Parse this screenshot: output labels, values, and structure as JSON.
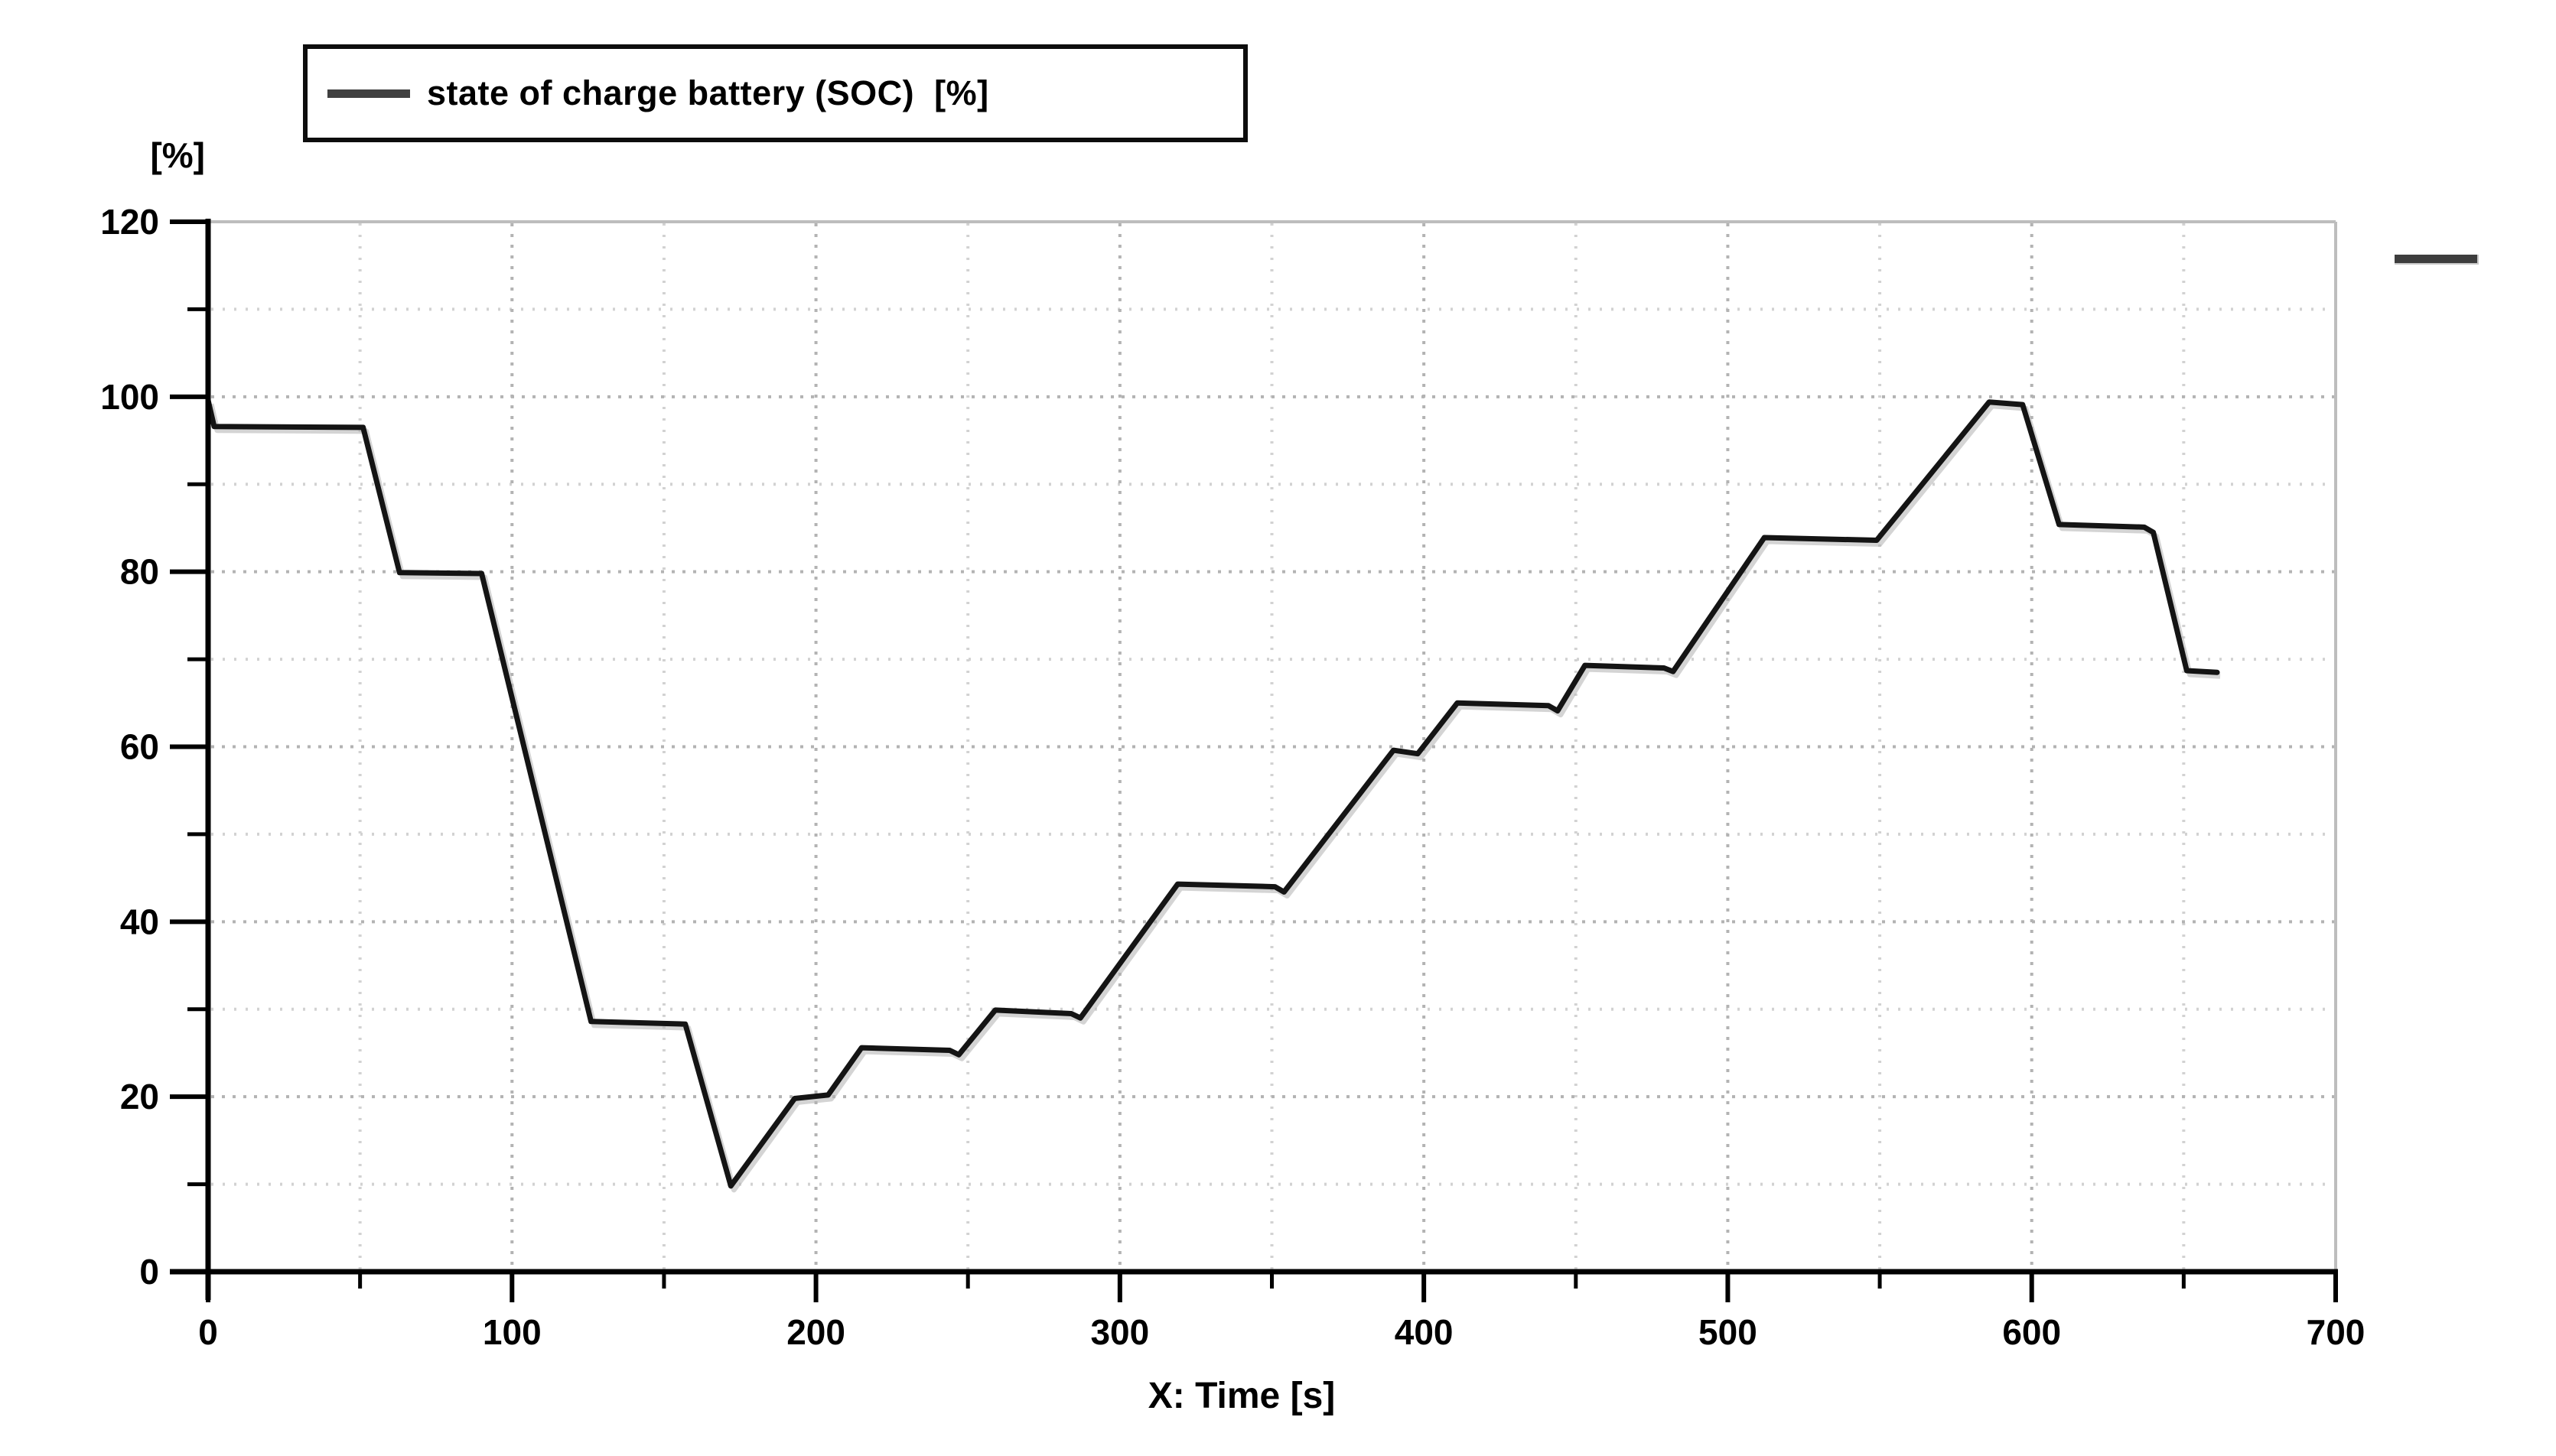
{
  "legend": {
    "label": "state of charge battery (SOC)  [%]"
  },
  "axes": {
    "y_unit_label": "[%]",
    "x_axis_label": "X: Time [s]"
  },
  "colors": {
    "series_line": "#141414",
    "series_shadow": "#b0b0b0",
    "legend_sample": "#404040",
    "axis": "#000000",
    "grid_major": "#b3b3b3",
    "grid_minor": "#d2d2d2",
    "frame_border": "#bdbdbd",
    "corner_dash": "#3d3d3d",
    "background": "#ffffff"
  },
  "chart_data": {
    "type": "line",
    "title": "",
    "xlabel": "X: Time [s]",
    "ylabel": "[%]",
    "xlim": [
      0,
      700
    ],
    "ylim": [
      0,
      120
    ],
    "x_major_ticks": [
      0,
      100,
      200,
      300,
      400,
      500,
      600,
      700
    ],
    "y_major_ticks": [
      0,
      20,
      40,
      60,
      80,
      100,
      120
    ],
    "x_minor_step": 50,
    "y_minor_step": 10,
    "grid": "dotted",
    "legend_position": "top-left",
    "series": [
      {
        "name": "state of charge battery (SOC)  [%]",
        "color": "#141414",
        "points": [
          [
            0,
            99.6
          ],
          [
            2,
            96.6
          ],
          [
            51,
            96.5
          ],
          [
            63,
            79.9
          ],
          [
            90,
            79.8
          ],
          [
            126,
            28.6
          ],
          [
            157,
            28.3
          ],
          [
            172,
            9.8
          ],
          [
            193,
            19.8
          ],
          [
            204,
            20.2
          ],
          [
            215,
            25.6
          ],
          [
            244,
            25.3
          ],
          [
            247,
            24.8
          ],
          [
            259,
            29.9
          ],
          [
            284,
            29.5
          ],
          [
            287,
            29.0
          ],
          [
            319,
            44.3
          ],
          [
            351,
            44.0
          ],
          [
            354,
            43.4
          ],
          [
            390,
            59.6
          ],
          [
            398,
            59.2
          ],
          [
            411,
            65.0
          ],
          [
            441,
            64.7
          ],
          [
            444,
            64.1
          ],
          [
            453,
            69.3
          ],
          [
            479,
            69.0
          ],
          [
            482,
            68.6
          ],
          [
            512,
            83.9
          ],
          [
            549,
            83.6
          ],
          [
            586,
            99.4
          ],
          [
            597,
            99.1
          ],
          [
            609,
            85.4
          ],
          [
            637,
            85.1
          ],
          [
            640,
            84.5
          ],
          [
            651,
            68.7
          ],
          [
            661,
            68.5
          ]
        ]
      }
    ]
  }
}
